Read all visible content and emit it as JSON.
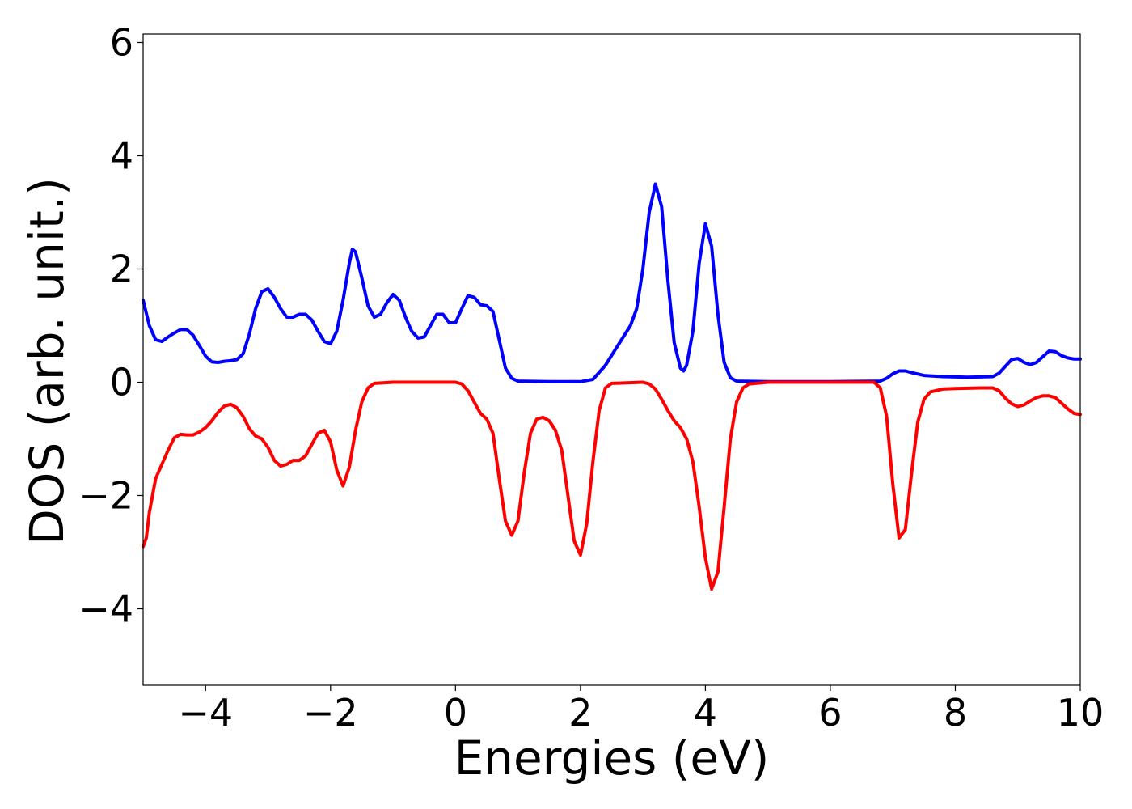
{
  "chart_data": {
    "type": "line",
    "title": "",
    "xlabel": "Energies (eV)",
    "ylabel": "DOS (arb. unit.)",
    "xlim": [
      -5,
      10
    ],
    "ylim": [
      -5.35,
      6.15
    ],
    "grid": false,
    "legend": "none",
    "x_ticks": [
      -4,
      -2,
      0,
      2,
      4,
      6,
      8,
      10
    ],
    "x_tick_labels": [
      "−4",
      "−2",
      "0",
      "2",
      "4",
      "6",
      "8",
      "10"
    ],
    "y_ticks": [
      -4,
      -2,
      0,
      2,
      4,
      6
    ],
    "y_tick_labels": [
      "−4",
      "−2",
      "0",
      "2",
      "4",
      "6"
    ],
    "series": [
      {
        "color": "#0000ff",
        "points": [
          [
            -5.0,
            1.45
          ],
          [
            -4.9,
            1.0
          ],
          [
            -4.8,
            0.75
          ],
          [
            -4.7,
            0.72
          ],
          [
            -4.6,
            0.8
          ],
          [
            -4.5,
            0.87
          ],
          [
            -4.4,
            0.93
          ],
          [
            -4.3,
            0.93
          ],
          [
            -4.2,
            0.83
          ],
          [
            -4.1,
            0.65
          ],
          [
            -4.0,
            0.46
          ],
          [
            -3.9,
            0.36
          ],
          [
            -3.8,
            0.35
          ],
          [
            -3.7,
            0.37
          ],
          [
            -3.6,
            0.38
          ],
          [
            -3.5,
            0.4
          ],
          [
            -3.4,
            0.5
          ],
          [
            -3.3,
            0.85
          ],
          [
            -3.2,
            1.3
          ],
          [
            -3.1,
            1.6
          ],
          [
            -3.0,
            1.65
          ],
          [
            -2.9,
            1.5
          ],
          [
            -2.8,
            1.3
          ],
          [
            -2.7,
            1.15
          ],
          [
            -2.6,
            1.15
          ],
          [
            -2.5,
            1.2
          ],
          [
            -2.4,
            1.2
          ],
          [
            -2.3,
            1.1
          ],
          [
            -2.2,
            0.9
          ],
          [
            -2.1,
            0.72
          ],
          [
            -2.0,
            0.68
          ],
          [
            -1.9,
            0.9
          ],
          [
            -1.8,
            1.45
          ],
          [
            -1.7,
            2.1
          ],
          [
            -1.65,
            2.35
          ],
          [
            -1.6,
            2.3
          ],
          [
            -1.5,
            1.85
          ],
          [
            -1.4,
            1.35
          ],
          [
            -1.3,
            1.15
          ],
          [
            -1.2,
            1.2
          ],
          [
            -1.1,
            1.4
          ],
          [
            -1.0,
            1.55
          ],
          [
            -0.9,
            1.45
          ],
          [
            -0.8,
            1.15
          ],
          [
            -0.7,
            0.9
          ],
          [
            -0.6,
            0.78
          ],
          [
            -0.5,
            0.8
          ],
          [
            -0.4,
            1.0
          ],
          [
            -0.3,
            1.2
          ],
          [
            -0.2,
            1.2
          ],
          [
            -0.1,
            1.05
          ],
          [
            0.0,
            1.05
          ],
          [
            0.1,
            1.3
          ],
          [
            0.2,
            1.53
          ],
          [
            0.3,
            1.5
          ],
          [
            0.4,
            1.37
          ],
          [
            0.5,
            1.35
          ],
          [
            0.6,
            1.25
          ],
          [
            0.7,
            0.75
          ],
          [
            0.8,
            0.25
          ],
          [
            0.9,
            0.07
          ],
          [
            1.0,
            0.02
          ],
          [
            1.5,
            0.01
          ],
          [
            2.0,
            0.01
          ],
          [
            2.2,
            0.05
          ],
          [
            2.4,
            0.3
          ],
          [
            2.6,
            0.65
          ],
          [
            2.8,
            1.0
          ],
          [
            2.9,
            1.3
          ],
          [
            3.0,
            2.0
          ],
          [
            3.1,
            3.0
          ],
          [
            3.2,
            3.5
          ],
          [
            3.3,
            3.1
          ],
          [
            3.4,
            1.8
          ],
          [
            3.5,
            0.7
          ],
          [
            3.6,
            0.25
          ],
          [
            3.65,
            0.2
          ],
          [
            3.7,
            0.3
          ],
          [
            3.8,
            0.9
          ],
          [
            3.9,
            2.1
          ],
          [
            4.0,
            2.8
          ],
          [
            4.1,
            2.4
          ],
          [
            4.2,
            1.2
          ],
          [
            4.3,
            0.35
          ],
          [
            4.4,
            0.08
          ],
          [
            4.5,
            0.02
          ],
          [
            5.0,
            0.01
          ],
          [
            6.0,
            0.01
          ],
          [
            6.8,
            0.02
          ],
          [
            6.9,
            0.07
          ],
          [
            7.0,
            0.15
          ],
          [
            7.1,
            0.2
          ],
          [
            7.2,
            0.2
          ],
          [
            7.3,
            0.17
          ],
          [
            7.5,
            0.12
          ],
          [
            7.8,
            0.1
          ],
          [
            8.2,
            0.09
          ],
          [
            8.6,
            0.1
          ],
          [
            8.7,
            0.16
          ],
          [
            8.8,
            0.28
          ],
          [
            8.9,
            0.4
          ],
          [
            9.0,
            0.42
          ],
          [
            9.1,
            0.35
          ],
          [
            9.2,
            0.31
          ],
          [
            9.3,
            0.35
          ],
          [
            9.4,
            0.45
          ],
          [
            9.5,
            0.55
          ],
          [
            9.6,
            0.54
          ],
          [
            9.7,
            0.47
          ],
          [
            9.8,
            0.43
          ],
          [
            9.9,
            0.41
          ],
          [
            10.0,
            0.41
          ]
        ]
      },
      {
        "color": "#ff0000",
        "points": [
          [
            -5.0,
            -2.9
          ],
          [
            -4.95,
            -2.75
          ],
          [
            -4.9,
            -2.3
          ],
          [
            -4.8,
            -1.7
          ],
          [
            -4.7,
            -1.45
          ],
          [
            -4.6,
            -1.2
          ],
          [
            -4.5,
            -0.98
          ],
          [
            -4.4,
            -0.92
          ],
          [
            -4.3,
            -0.93
          ],
          [
            -4.2,
            -0.93
          ],
          [
            -4.1,
            -0.88
          ],
          [
            -4.0,
            -0.8
          ],
          [
            -3.9,
            -0.68
          ],
          [
            -3.8,
            -0.53
          ],
          [
            -3.7,
            -0.42
          ],
          [
            -3.6,
            -0.39
          ],
          [
            -3.5,
            -0.45
          ],
          [
            -3.4,
            -0.6
          ],
          [
            -3.3,
            -0.82
          ],
          [
            -3.2,
            -0.95
          ],
          [
            -3.1,
            -1.0
          ],
          [
            -3.0,
            -1.15
          ],
          [
            -2.9,
            -1.38
          ],
          [
            -2.8,
            -1.48
          ],
          [
            -2.7,
            -1.45
          ],
          [
            -2.6,
            -1.38
          ],
          [
            -2.5,
            -1.38
          ],
          [
            -2.4,
            -1.3
          ],
          [
            -2.3,
            -1.1
          ],
          [
            -2.2,
            -0.9
          ],
          [
            -2.1,
            -0.85
          ],
          [
            -2.0,
            -1.05
          ],
          [
            -1.9,
            -1.55
          ],
          [
            -1.8,
            -1.83
          ],
          [
            -1.7,
            -1.5
          ],
          [
            -1.6,
            -0.85
          ],
          [
            -1.5,
            -0.35
          ],
          [
            -1.4,
            -0.1
          ],
          [
            -1.3,
            -0.02
          ],
          [
            -1.0,
            0.0
          ],
          [
            0.0,
            0.0
          ],
          [
            0.1,
            -0.03
          ],
          [
            0.2,
            -0.15
          ],
          [
            0.3,
            -0.35
          ],
          [
            0.4,
            -0.55
          ],
          [
            0.5,
            -0.65
          ],
          [
            0.6,
            -0.9
          ],
          [
            0.7,
            -1.7
          ],
          [
            0.8,
            -2.45
          ],
          [
            0.9,
            -2.7
          ],
          [
            1.0,
            -2.45
          ],
          [
            1.1,
            -1.6
          ],
          [
            1.2,
            -0.9
          ],
          [
            1.3,
            -0.65
          ],
          [
            1.4,
            -0.62
          ],
          [
            1.5,
            -0.68
          ],
          [
            1.6,
            -0.85
          ],
          [
            1.7,
            -1.2
          ],
          [
            1.8,
            -2.0
          ],
          [
            1.9,
            -2.8
          ],
          [
            2.0,
            -3.05
          ],
          [
            2.1,
            -2.5
          ],
          [
            2.2,
            -1.4
          ],
          [
            2.3,
            -0.5
          ],
          [
            2.4,
            -0.1
          ],
          [
            2.5,
            -0.02
          ],
          [
            3.0,
            0.0
          ],
          [
            3.1,
            -0.03
          ],
          [
            3.2,
            -0.12
          ],
          [
            3.3,
            -0.3
          ],
          [
            3.4,
            -0.5
          ],
          [
            3.5,
            -0.68
          ],
          [
            3.6,
            -0.8
          ],
          [
            3.7,
            -1.0
          ],
          [
            3.8,
            -1.4
          ],
          [
            3.9,
            -2.2
          ],
          [
            4.0,
            -3.1
          ],
          [
            4.1,
            -3.65
          ],
          [
            4.2,
            -3.35
          ],
          [
            4.3,
            -2.2
          ],
          [
            4.4,
            -1.0
          ],
          [
            4.5,
            -0.35
          ],
          [
            4.6,
            -0.1
          ],
          [
            4.7,
            -0.03
          ],
          [
            5.0,
            0.0
          ],
          [
            6.7,
            0.0
          ],
          [
            6.8,
            -0.1
          ],
          [
            6.9,
            -0.6
          ],
          [
            7.0,
            -1.8
          ],
          [
            7.1,
            -2.75
          ],
          [
            7.2,
            -2.6
          ],
          [
            7.3,
            -1.6
          ],
          [
            7.4,
            -0.7
          ],
          [
            7.5,
            -0.3
          ],
          [
            7.6,
            -0.17
          ],
          [
            7.8,
            -0.12
          ],
          [
            8.0,
            -0.11
          ],
          [
            8.4,
            -0.1
          ],
          [
            8.6,
            -0.1
          ],
          [
            8.7,
            -0.15
          ],
          [
            8.8,
            -0.28
          ],
          [
            8.9,
            -0.38
          ],
          [
            9.0,
            -0.43
          ],
          [
            9.1,
            -0.4
          ],
          [
            9.2,
            -0.33
          ],
          [
            9.3,
            -0.27
          ],
          [
            9.4,
            -0.24
          ],
          [
            9.5,
            -0.24
          ],
          [
            9.6,
            -0.27
          ],
          [
            9.7,
            -0.37
          ],
          [
            9.8,
            -0.47
          ],
          [
            9.9,
            -0.55
          ],
          [
            10.0,
            -0.57
          ]
        ]
      }
    ]
  }
}
